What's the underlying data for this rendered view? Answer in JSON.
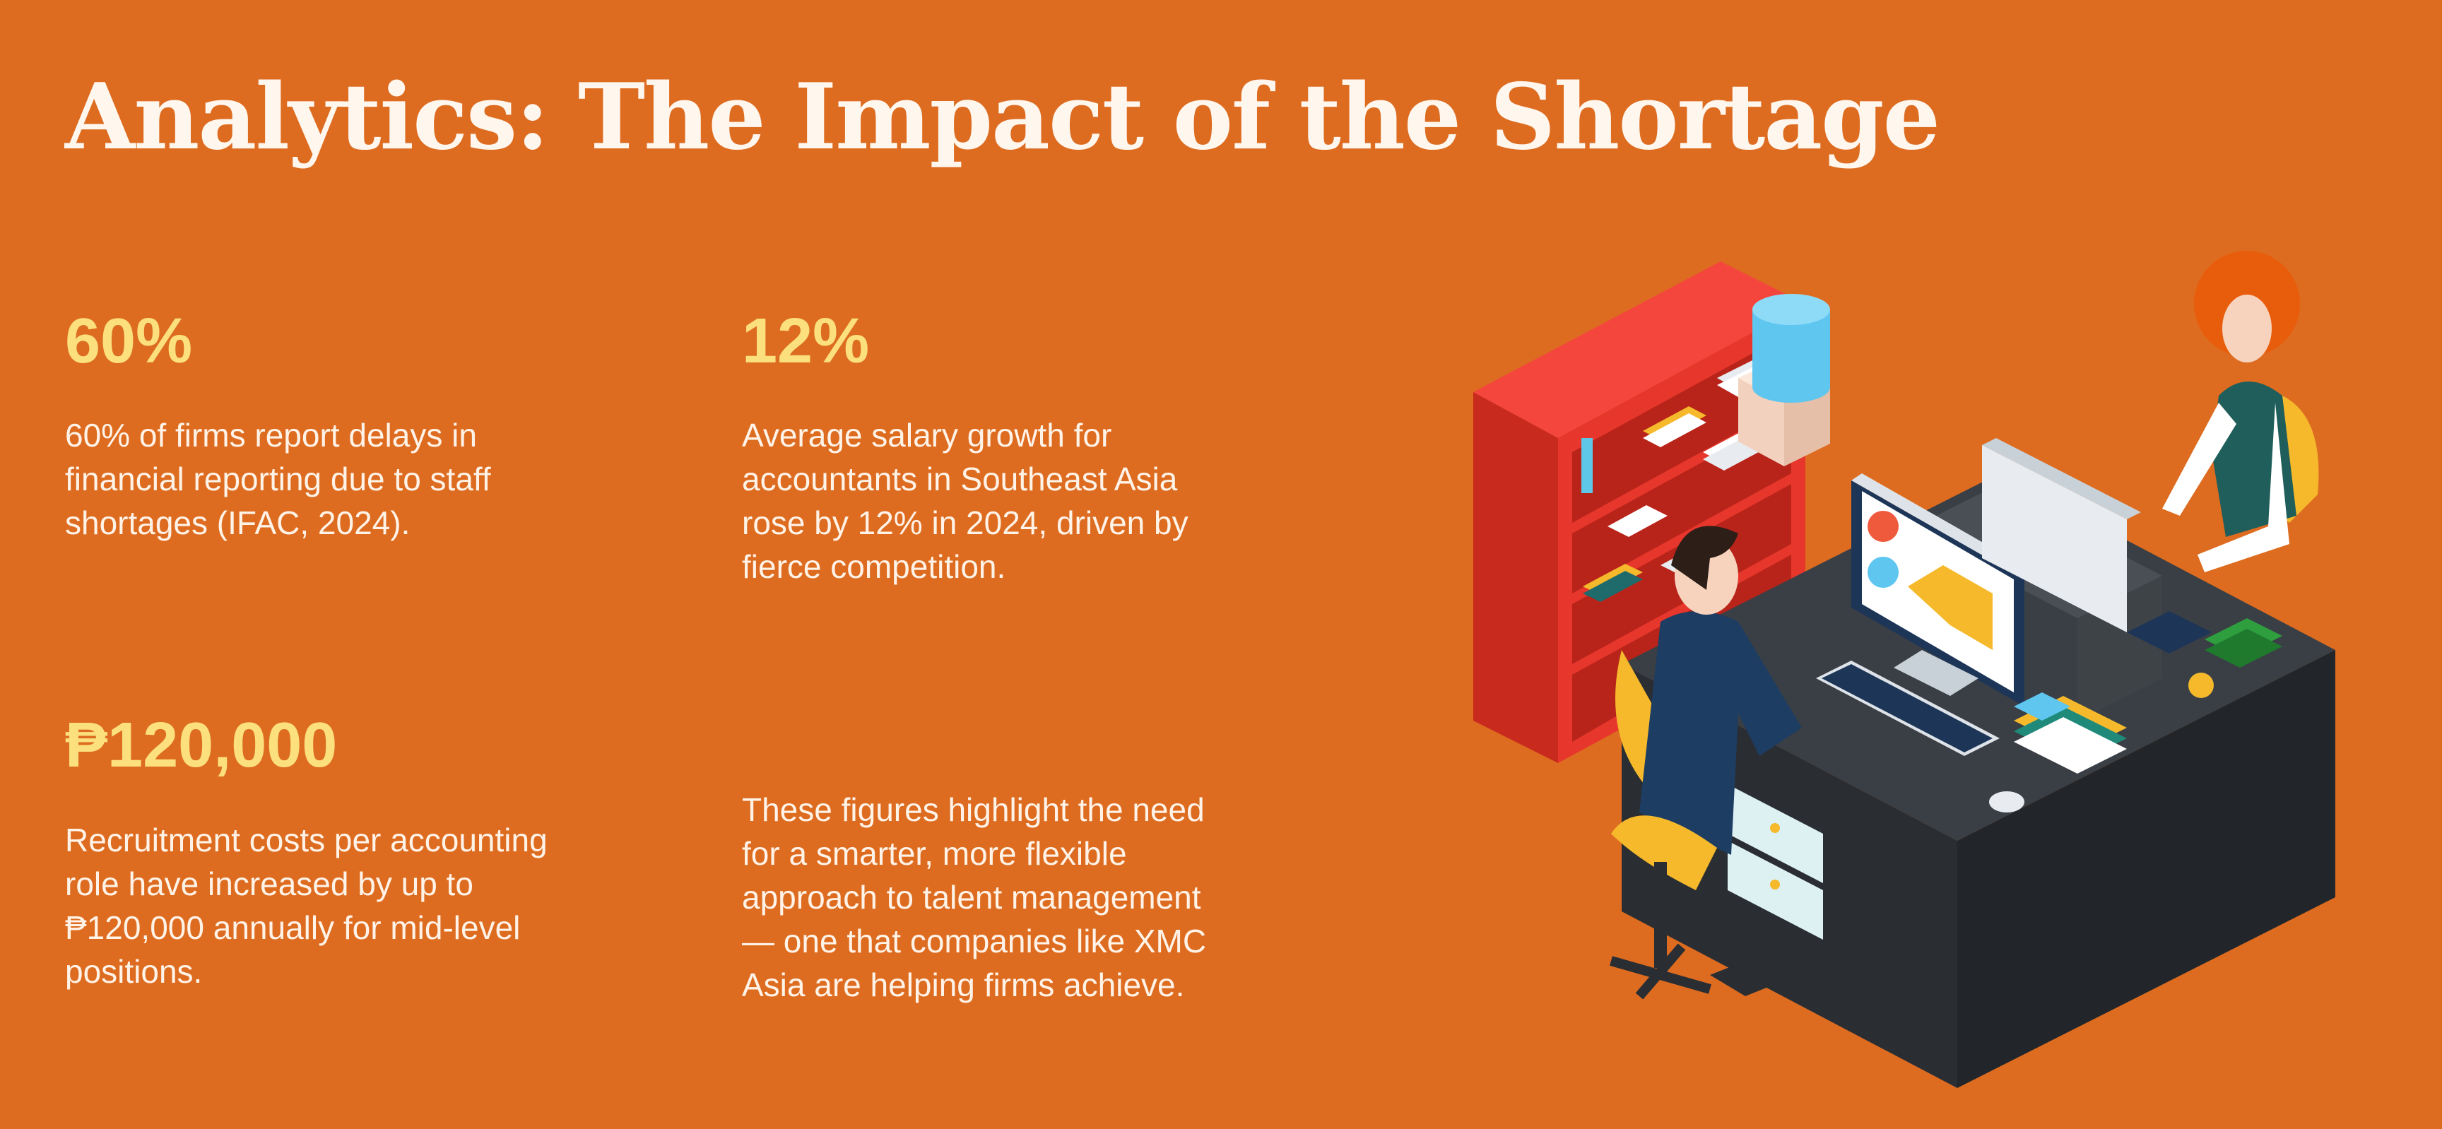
{
  "title": "Analytics: The Impact of the Shortage",
  "stats": [
    {
      "value": "60%",
      "lines": [
        "60% of firms report delays in",
        "financial reporting due to staff",
        "shortages (IFAC, 2024)."
      ]
    },
    {
      "value": "12%",
      "lines": [
        "Average salary growth for",
        "accountants in Southeast Asia",
        "rose by 12% in 2024, driven by",
        "fierce competition."
      ]
    },
    {
      "value": "₱120,000",
      "lines": [
        "Recruitment costs per accounting",
        "role have increased by up to",
        "₱120,000 annually for mid-level",
        "positions."
      ]
    }
  ],
  "closing": {
    "lines": [
      "These figures highlight the need",
      "for a smarter, more flexible",
      "approach to talent management",
      "— one that companies like XMC",
      "Asia are helping firms achieve."
    ]
  },
  "colors": {
    "background": "#DD6C20",
    "stat_value": "#FBE07D",
    "text": "#FFF3E8"
  }
}
